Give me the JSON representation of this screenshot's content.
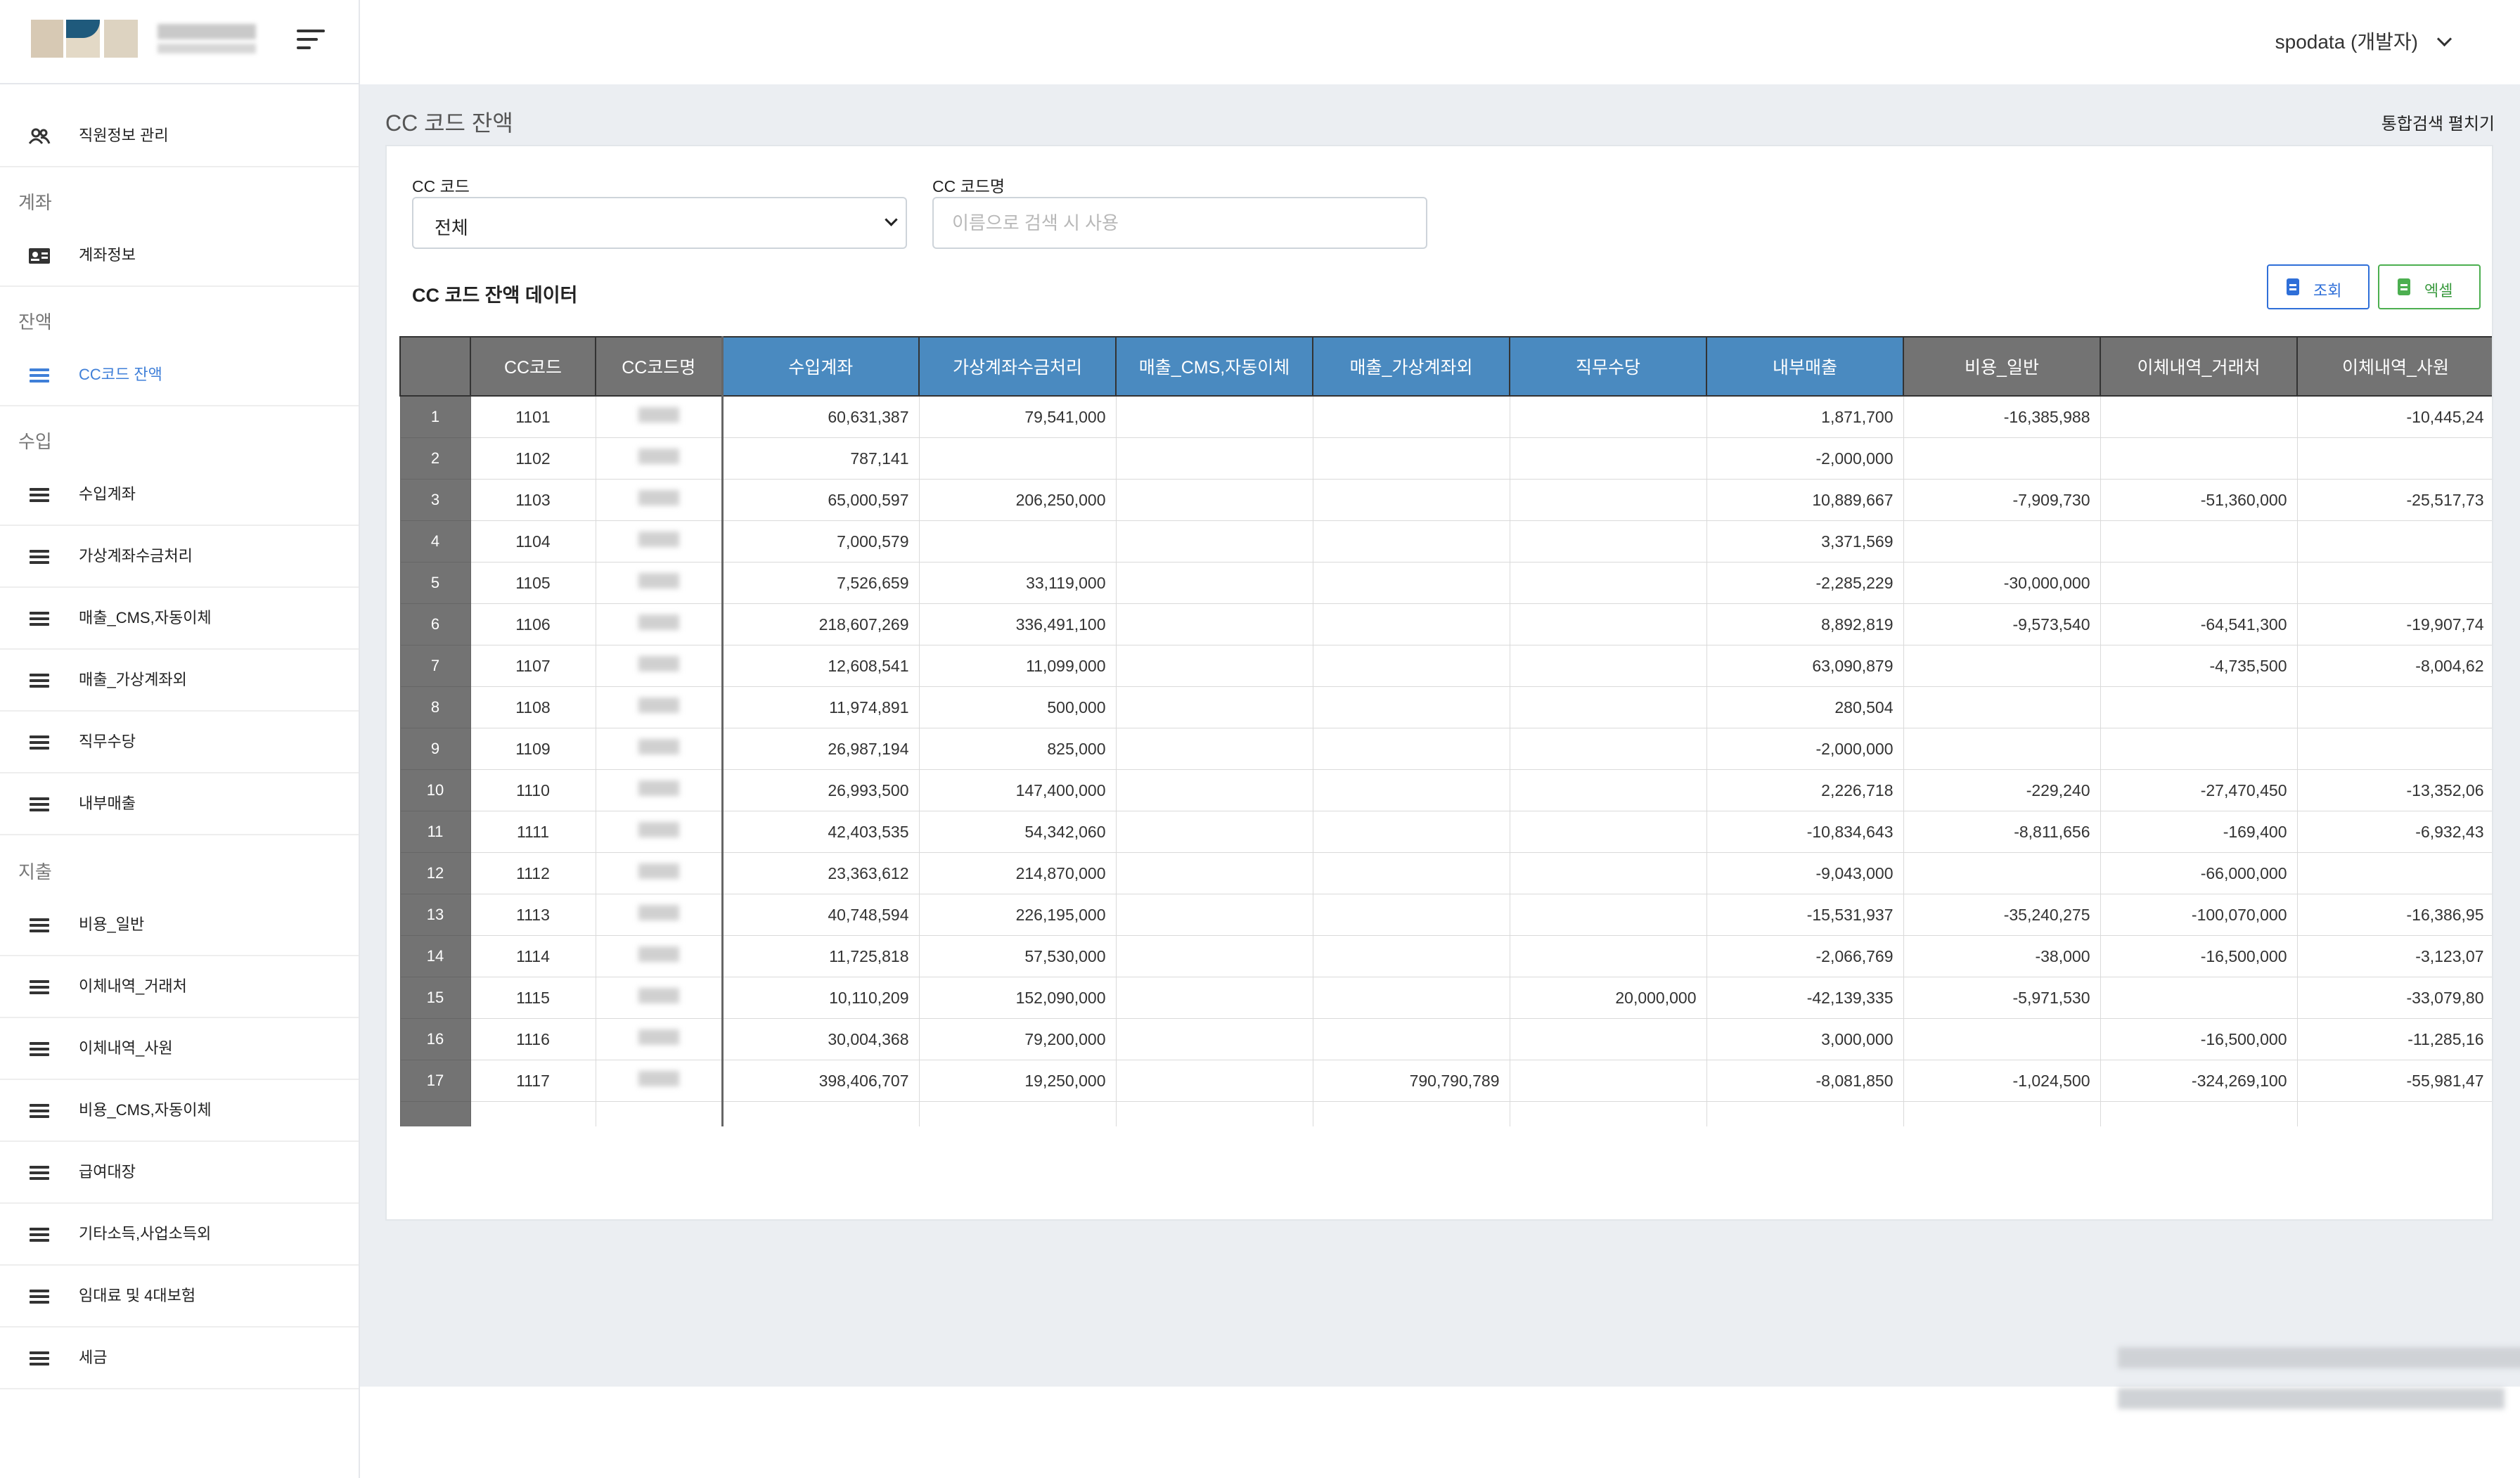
{
  "header": {
    "user_label": "spodata (개발자)"
  },
  "sidebar": {
    "top_item": {
      "label": "직원정보 관리",
      "icon": "people-icon"
    },
    "sections": [
      {
        "title": "계좌",
        "items": [
          {
            "label": "계좌정보",
            "icon": "id-card-icon"
          }
        ]
      },
      {
        "title": "잔액",
        "items": [
          {
            "label": "CC코드 잔액",
            "icon": "list-icon",
            "active": true
          }
        ]
      },
      {
        "title": "수입",
        "items": [
          {
            "label": "수입계좌",
            "icon": "list-icon"
          },
          {
            "label": "가상계좌수금처리",
            "icon": "list-icon"
          },
          {
            "label": "매출_CMS,자동이체",
            "icon": "list-icon"
          },
          {
            "label": "매출_가상계좌외",
            "icon": "list-icon"
          },
          {
            "label": "직무수당",
            "icon": "list-icon"
          },
          {
            "label": "내부매출",
            "icon": "list-icon"
          }
        ]
      },
      {
        "title": "지출",
        "items": [
          {
            "label": "비용_일반",
            "icon": "list-icon"
          },
          {
            "label": "이체내역_거래처",
            "icon": "list-icon"
          },
          {
            "label": "이체내역_사원",
            "icon": "list-icon"
          },
          {
            "label": "비용_CMS,자동이체",
            "icon": "list-icon"
          },
          {
            "label": "급여대장",
            "icon": "list-icon"
          },
          {
            "label": "기타소득,사업소득외",
            "icon": "list-icon"
          },
          {
            "label": "임대료 및 4대보험",
            "icon": "list-icon"
          },
          {
            "label": "세금",
            "icon": "list-icon"
          }
        ]
      }
    ]
  },
  "page": {
    "title": "CC 코드 잔액",
    "expand_search_label": "통합검색 펼치기",
    "filters": {
      "cc_code_label": "CC 코드",
      "cc_code_value": "전체",
      "cc_name_label": "CC 코드명",
      "cc_name_placeholder": "이름으로 검색 시 사용"
    },
    "data_title": "CC 코드 잔액 데이터",
    "buttons": {
      "search": "조회",
      "excel": "엑셀"
    }
  },
  "colors": {
    "accent": "#3f7fd8",
    "header_grey": "#737373",
    "header_blue": "#4a8ac0",
    "excel_green": "#4caf50"
  },
  "table": {
    "columns": [
      "",
      "CC코드",
      "CC코드명",
      "수입계좌",
      "가상계좌수금처리",
      "매출_CMS,자동이체",
      "매출_가상계좌외",
      "직무수당",
      "내부매출",
      "비용_일반",
      "이체내역_거래처",
      "이체내역_사원"
    ],
    "rows": [
      [
        "1",
        "1101",
        "",
        "60,631,387",
        "79,541,000",
        "",
        "",
        "",
        "1,871,700",
        "-16,385,988",
        "",
        "-10,445,24"
      ],
      [
        "2",
        "1102",
        "",
        "787,141",
        "",
        "",
        "",
        "",
        "-2,000,000",
        "",
        "",
        ""
      ],
      [
        "3",
        "1103",
        "",
        "65,000,597",
        "206,250,000",
        "",
        "",
        "",
        "10,889,667",
        "-7,909,730",
        "-51,360,000",
        "-25,517,73"
      ],
      [
        "4",
        "1104",
        "",
        "7,000,579",
        "",
        "",
        "",
        "",
        "3,371,569",
        "",
        "",
        ""
      ],
      [
        "5",
        "1105",
        "",
        "7,526,659",
        "33,119,000",
        "",
        "",
        "",
        "-2,285,229",
        "-30,000,000",
        "",
        ""
      ],
      [
        "6",
        "1106",
        "",
        "218,607,269",
        "336,491,100",
        "",
        "",
        "",
        "8,892,819",
        "-9,573,540",
        "-64,541,300",
        "-19,907,74"
      ],
      [
        "7",
        "1107",
        "",
        "12,608,541",
        "11,099,000",
        "",
        "",
        "",
        "63,090,879",
        "",
        "-4,735,500",
        "-8,004,62"
      ],
      [
        "8",
        "1108",
        "",
        "11,974,891",
        "500,000",
        "",
        "",
        "",
        "280,504",
        "",
        "",
        ""
      ],
      [
        "9",
        "1109",
        "",
        "26,987,194",
        "825,000",
        "",
        "",
        "",
        "-2,000,000",
        "",
        "",
        ""
      ],
      [
        "10",
        "1110",
        "",
        "26,993,500",
        "147,400,000",
        "",
        "",
        "",
        "2,226,718",
        "-229,240",
        "-27,470,450",
        "-13,352,06"
      ],
      [
        "11",
        "1111",
        "",
        "42,403,535",
        "54,342,060",
        "",
        "",
        "",
        "-10,834,643",
        "-8,811,656",
        "-169,400",
        "-6,932,43"
      ],
      [
        "12",
        "1112",
        "",
        "23,363,612",
        "214,870,000",
        "",
        "",
        "",
        "-9,043,000",
        "",
        "-66,000,000",
        ""
      ],
      [
        "13",
        "1113",
        "",
        "40,748,594",
        "226,195,000",
        "",
        "",
        "",
        "-15,531,937",
        "-35,240,275",
        "-100,070,000",
        "-16,386,95"
      ],
      [
        "14",
        "1114",
        "",
        "11,725,818",
        "57,530,000",
        "",
        "",
        "",
        "-2,066,769",
        "-38,000",
        "-16,500,000",
        "-3,123,07"
      ],
      [
        "15",
        "1115",
        "",
        "10,110,209",
        "152,090,000",
        "",
        "",
        "20,000,000",
        "-42,139,335",
        "-5,971,530",
        "",
        "-33,079,80"
      ],
      [
        "16",
        "1116",
        "",
        "30,004,368",
        "79,200,000",
        "",
        "",
        "",
        "3,000,000",
        "",
        "-16,500,000",
        "-11,285,16"
      ],
      [
        "17",
        "1117",
        "",
        "398,406,707",
        "19,250,000",
        "",
        "790,790,789",
        "",
        "-8,081,850",
        "-1,024,500",
        "-324,269,100",
        "-55,981,47"
      ]
    ]
  }
}
